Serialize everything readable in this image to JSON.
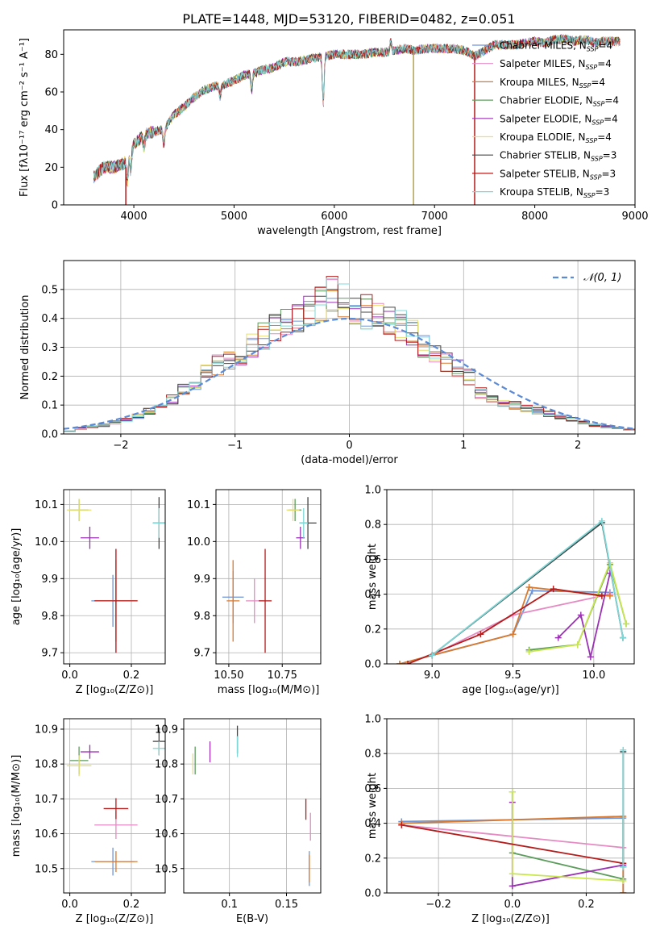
{
  "title": "PLATE=1448, MJD=53120, FIBERID=0482, z=0.051",
  "colors": {
    "chabrier_miles": "#6f95d6",
    "salpeter_miles": "#e58ac2",
    "kroupa_miles": "#d97a2f",
    "chabrier_elodie": "#5c9c5c",
    "salpeter_elodie": "#9b32b4",
    "kroupa_elodie": "#e8e070",
    "chabrier_stelib": "#444444",
    "salpeter_stelib": "#b51c1c",
    "kroupa_stelib": "#7fd8d8",
    "normal_curve": "#5b8bd6",
    "kroupa_elodie_mw": "#c8e650"
  },
  "chart_data": [
    {
      "id": "spectrum",
      "type": "line",
      "xlabel": "wavelength [Angstrom, rest frame]",
      "ylabel": "Flux [fλ10⁻¹⁷ erg cm⁻² s⁻¹ A⁻¹]",
      "xlim": [
        3300,
        9000
      ],
      "ylim": [
        0,
        93
      ],
      "xticks": [
        4000,
        5000,
        6000,
        7000,
        8000,
        9000
      ],
      "yticks": [
        0,
        20,
        40,
        60,
        80
      ],
      "grid": false,
      "legend_position": "right",
      "series": [
        {
          "name": "Chabrier MILES, N",
          "sub": "SSP",
          "suffix": "=4",
          "color_key": "chabrier_miles"
        },
        {
          "name": "Salpeter MILES, N",
          "sub": "SSP",
          "suffix": "=4",
          "color_key": "salpeter_miles"
        },
        {
          "name": "Kroupa MILES, N",
          "sub": "SSP",
          "suffix": "=4",
          "color_key": "kroupa_miles"
        },
        {
          "name": "Chabrier ELODIE, N",
          "sub": "SSP",
          "suffix": "=4",
          "color_key": "chabrier_elodie"
        },
        {
          "name": "Salpeter ELODIE, N",
          "sub": "SSP",
          "suffix": "=4",
          "color_key": "salpeter_elodie"
        },
        {
          "name": "Kroupa ELODIE, N",
          "sub": "SSP",
          "suffix": "=4",
          "color_key": "kroupa_elodie"
        },
        {
          "name": "Chabrier STELIB, N",
          "sub": "SSP",
          "suffix": "=3",
          "color_key": "chabrier_stelib"
        },
        {
          "name": "Salpeter STELIB, N",
          "sub": "SSP",
          "suffix": "=3",
          "color_key": "salpeter_stelib"
        },
        {
          "name": "Kroupa STELIB, N",
          "sub": "SSP",
          "suffix": "=3",
          "color_key": "kroupa_stelib"
        }
      ],
      "continuum": [
        [
          3600,
          15
        ],
        [
          3700,
          20
        ],
        [
          3800,
          20
        ],
        [
          3900,
          22
        ],
        [
          3950,
          26
        ],
        [
          4000,
          32
        ],
        [
          4100,
          37
        ],
        [
          4200,
          39
        ],
        [
          4300,
          40
        ],
        [
          4400,
          48
        ],
        [
          4500,
          52
        ],
        [
          4600,
          57
        ],
        [
          4700,
          61
        ],
        [
          4800,
          63
        ],
        [
          4900,
          64
        ],
        [
          5000,
          66
        ],
        [
          5100,
          69
        ],
        [
          5200,
          70
        ],
        [
          5300,
          72
        ],
        [
          5400,
          73
        ],
        [
          5500,
          76
        ],
        [
          5600,
          76
        ],
        [
          5700,
          77
        ],
        [
          5800,
          78
        ],
        [
          5900,
          79
        ],
        [
          6000,
          80
        ],
        [
          6100,
          80
        ],
        [
          6200,
          80
        ],
        [
          6300,
          80
        ],
        [
          6400,
          81
        ],
        [
          6500,
          81
        ],
        [
          6600,
          82
        ],
        [
          6700,
          83
        ],
        [
          6800,
          82
        ],
        [
          6900,
          83
        ],
        [
          7000,
          83
        ],
        [
          7100,
          83
        ],
        [
          7200,
          83
        ],
        [
          7300,
          82
        ],
        [
          7400,
          79
        ],
        [
          7500,
          82
        ],
        [
          7600,
          85
        ],
        [
          7700,
          85
        ],
        [
          7800,
          85
        ],
        [
          7900,
          86
        ],
        [
          8000,
          87
        ],
        [
          8100,
          86
        ],
        [
          8200,
          88
        ],
        [
          8300,
          88
        ],
        [
          8400,
          87
        ],
        [
          8500,
          88
        ],
        [
          8600,
          86
        ],
        [
          8700,
          87
        ],
        [
          8800,
          87
        ],
        [
          8850,
          87
        ]
      ],
      "absorption": [
        [
          3934,
          12
        ],
        [
          3969,
          10
        ],
        [
          4101,
          6
        ],
        [
          4300,
          8
        ],
        [
          4861,
          6
        ],
        [
          5175,
          9
        ],
        [
          5890,
          25
        ],
        [
          6563,
          -5
        ]
      ],
      "dropouts": [
        [
          3920,
          20
        ],
        [
          6790,
          82
        ],
        [
          7400,
          80
        ]
      ]
    },
    {
      "id": "residuals",
      "type": "histogram",
      "xlabel": "(data-model)/error",
      "ylabel": "Normed distribution",
      "xlim": [
        -2.5,
        2.5
      ],
      "ylim": [
        0,
        0.6
      ],
      "xticks": [
        -2,
        -1,
        0,
        1,
        2
      ],
      "yticks": [
        0.0,
        0.1,
        0.2,
        0.3,
        0.4,
        0.5
      ],
      "grid": true,
      "legend": "𝒩(0, 1)",
      "legend_position": "top-right",
      "bin_edges": [
        -2.5,
        -2.4,
        -2.3,
        -2.2,
        -2.1,
        -2.0,
        -1.9,
        -1.8,
        -1.7,
        -1.6,
        -1.5,
        -1.4,
        -1.3,
        -1.2,
        -1.1,
        -1.0,
        -0.9,
        -0.8,
        -0.7,
        -0.6,
        -0.5,
        -0.4,
        -0.3,
        -0.2,
        -0.1,
        0.0,
        0.1,
        0.2,
        0.3,
        0.4,
        0.5,
        0.6,
        0.7,
        0.8,
        0.9,
        1.0,
        1.1,
        1.2,
        1.3,
        1.4,
        1.5,
        1.6,
        1.7,
        1.8,
        1.9,
        2.0,
        2.1,
        2.2,
        2.3,
        2.4,
        2.5
      ],
      "base_density": [
        0.01,
        0.02,
        0.025,
        0.03,
        0.04,
        0.05,
        0.06,
        0.08,
        0.1,
        0.12,
        0.15,
        0.18,
        0.21,
        0.24,
        0.26,
        0.28,
        0.31,
        0.34,
        0.37,
        0.39,
        0.41,
        0.42,
        0.45,
        0.5,
        0.46,
        0.43,
        0.42,
        0.41,
        0.4,
        0.38,
        0.36,
        0.3,
        0.28,
        0.25,
        0.23,
        0.2,
        0.14,
        0.12,
        0.11,
        0.1,
        0.09,
        0.08,
        0.07,
        0.06,
        0.05,
        0.04,
        0.03,
        0.025,
        0.02,
        0.015
      ],
      "series_keys": [
        "chabrier_miles",
        "salpeter_miles",
        "kroupa_miles",
        "chabrier_elodie",
        "salpeter_elodie",
        "kroupa_elodie",
        "chabrier_stelib",
        "salpeter_stelib",
        "kroupa_stelib"
      ]
    },
    {
      "id": "age_vs_z",
      "type": "scatter",
      "xlabel": "Z [log₁₀(Z/Z⊙)]",
      "ylabel": "age  [log₁₀(age/yr)]",
      "xlim": [
        -0.02,
        0.31
      ],
      "ylim": [
        9.67,
        10.14
      ],
      "xticks": [
        0.0,
        0.2
      ],
      "yticks": [
        9.7,
        9.8,
        9.9,
        10.0,
        10.1
      ],
      "grid": true,
      "points": [
        {
          "key": "chabrier_miles",
          "x": 0.14,
          "xerr": 0.07,
          "y": 9.84,
          "yerr": 0.07
        },
        {
          "key": "salpeter_miles",
          "x": 0.15,
          "xerr": 0.07,
          "y": 9.84,
          "yerr": 0.14
        },
        {
          "key": "kroupa_miles",
          "x": 0.15,
          "xerr": 0.07,
          "y": 9.84,
          "yerr": 0.11
        },
        {
          "key": "chabrier_elodie",
          "x": 0.03,
          "xerr": 0.03,
          "y": 10.085,
          "yerr": 0.03
        },
        {
          "key": "salpeter_elodie",
          "x": 0.065,
          "xerr": 0.03,
          "y": 10.01,
          "yerr": 0.03
        },
        {
          "key": "kroupa_elodie",
          "x": 0.03,
          "xerr": 0.04,
          "y": 10.085,
          "yerr": 0.03
        },
        {
          "key": "chabrier_stelib",
          "x": 0.29,
          "xerr": 0.02,
          "y": 10.05,
          "yerr": 0.07
        },
        {
          "key": "salpeter_stelib",
          "x": 0.15,
          "xerr": 0.07,
          "y": 9.84,
          "yerr": 0.14
        },
        {
          "key": "kroupa_stelib",
          "x": 0.29,
          "xerr": 0.02,
          "y": 10.05,
          "yerr": 0.04
        }
      ]
    },
    {
      "id": "age_vs_mass",
      "type": "scatter",
      "xlabel": "mass [log₁₀(M/M⊙)]",
      "ylabel": "",
      "xlim": [
        10.44,
        10.93
      ],
      "ylim": [
        9.67,
        10.14
      ],
      "xticks": [
        10.5,
        10.75
      ],
      "yticks": [
        9.7,
        9.8,
        9.9,
        10.0,
        10.1
      ],
      "grid": true,
      "points": [
        {
          "key": "chabrier_miles",
          "x": 10.52,
          "xerr": 0.05,
          "y": 9.85,
          "yerr": 0.07
        },
        {
          "key": "salpeter_miles",
          "x": 10.62,
          "xerr": 0.04,
          "y": 9.84,
          "yerr": 0.06
        },
        {
          "key": "kroupa_miles",
          "x": 10.52,
          "xerr": 0.03,
          "y": 9.84,
          "yerr": 0.11
        },
        {
          "key": "chabrier_elodie",
          "x": 10.81,
          "xerr": 0.03,
          "y": 10.085,
          "yerr": 0.03
        },
        {
          "key": "salpeter_elodie",
          "x": 10.835,
          "xerr": 0.02,
          "y": 10.01,
          "yerr": 0.03
        },
        {
          "key": "kroupa_elodie",
          "x": 10.8,
          "xerr": 0.03,
          "y": 10.085,
          "yerr": 0.03
        },
        {
          "key": "chabrier_stelib",
          "x": 10.87,
          "xerr": 0.04,
          "y": 10.05,
          "yerr": 0.07
        },
        {
          "key": "salpeter_stelib",
          "x": 10.67,
          "xerr": 0.03,
          "y": 9.84,
          "yerr": 0.14
        },
        {
          "key": "kroupa_stelib",
          "x": 10.85,
          "xerr": 0.02,
          "y": 10.05,
          "yerr": 0.04
        }
      ]
    },
    {
      "id": "mass_weight_vs_age",
      "type": "line",
      "xlabel": "age  [log₁₀(age/yr)]",
      "ylabel": "mass weight",
      "xlim": [
        8.72,
        10.25
      ],
      "ylim": [
        0,
        1.0
      ],
      "xticks": [
        9.0,
        9.5,
        10.0
      ],
      "yticks": [
        0.0,
        0.2,
        0.4,
        0.6,
        0.8,
        1.0
      ],
      "grid": true,
      "series": [
        {
          "key": "chabrier_miles",
          "x": [
            8.8,
            9.5,
            9.62,
            10.1
          ],
          "y": [
            0.0,
            0.17,
            0.42,
            0.41
          ]
        },
        {
          "key": "salpeter_miles",
          "x": [
            9.0,
            9.5,
            10.1
          ],
          "y": [
            0.05,
            0.28,
            0.4
          ]
        },
        {
          "key": "kroupa_miles",
          "x": [
            8.8,
            9.0,
            9.5,
            9.6,
            10.1
          ],
          "y": [
            0.0,
            0.05,
            0.17,
            0.44,
            0.39
          ]
        },
        {
          "key": "chabrier_elodie",
          "x": [
            9.6,
            9.9,
            10.1,
            10.2
          ],
          "y": [
            0.08,
            0.11,
            0.57,
            0.23
          ]
        },
        {
          "key": "salpeter_elodie",
          "x": [
            9.78,
            9.92,
            9.98,
            10.1
          ],
          "y": [
            0.15,
            0.28,
            0.04,
            0.52
          ]
        },
        {
          "key": "kroupa_elodie",
          "x": [
            9.6,
            9.9,
            10.1,
            10.2
          ],
          "y": [
            0.07,
            0.11,
            0.58,
            0.23
          ]
        },
        {
          "key": "chabrier_stelib",
          "x": [
            9.0,
            10.05,
            10.18
          ],
          "y": [
            0.05,
            0.81,
            0.15
          ]
        },
        {
          "key": "salpeter_stelib",
          "x": [
            8.85,
            9.3,
            9.75,
            10.05
          ],
          "y": [
            0.0,
            0.17,
            0.43,
            0.39
          ]
        },
        {
          "key": "kroupa_stelib",
          "x": [
            9.0,
            10.05,
            10.18
          ],
          "y": [
            0.05,
            0.82,
            0.15
          ]
        }
      ]
    },
    {
      "id": "mass_vs_z",
      "type": "scatter",
      "xlabel": "Z [log₁₀(Z/Z⊙)]",
      "ylabel": "mass [log₁₀(M/M⊙)]",
      "xlim": [
        -0.02,
        0.31
      ],
      "ylim": [
        10.43,
        10.93
      ],
      "xticks": [
        0.0,
        0.2
      ],
      "yticks": [
        10.5,
        10.6,
        10.7,
        10.8,
        10.9
      ],
      "grid": true,
      "points": [
        {
          "key": "chabrier_miles",
          "x": 0.14,
          "xerr": 0.07,
          "y": 10.52,
          "yerr": 0.04
        },
        {
          "key": "salpeter_miles",
          "x": 0.15,
          "xerr": 0.07,
          "y": 10.625,
          "yerr": 0.04
        },
        {
          "key": "kroupa_miles",
          "x": 0.15,
          "xerr": 0.07,
          "y": 10.52,
          "yerr": 0.03
        },
        {
          "key": "chabrier_elodie",
          "x": 0.03,
          "xerr": 0.03,
          "y": 10.81,
          "yerr": 0.04
        },
        {
          "key": "salpeter_elodie",
          "x": 0.065,
          "xerr": 0.03,
          "y": 10.835,
          "yerr": 0.02
        },
        {
          "key": "kroupa_elodie",
          "x": 0.03,
          "xerr": 0.04,
          "y": 10.795,
          "yerr": 0.03
        },
        {
          "key": "chabrier_stelib",
          "x": 0.29,
          "xerr": 0.02,
          "y": 10.865,
          "yerr": 0.04
        },
        {
          "key": "salpeter_stelib",
          "x": 0.15,
          "xerr": 0.04,
          "y": 10.672,
          "yerr": 0.03
        },
        {
          "key": "kroupa_stelib",
          "x": 0.29,
          "xerr": 0.02,
          "y": 10.845,
          "yerr": 0.02
        }
      ]
    },
    {
      "id": "mass_vs_ebv",
      "type": "scatter",
      "xlabel": "E(B-V)",
      "ylabel": "",
      "xlim": [
        0.06,
        0.18
      ],
      "ylim": [
        10.43,
        10.93
      ],
      "xticks": [
        0.1,
        0.15
      ],
      "yticks": [
        10.5,
        10.6,
        10.7,
        10.8,
        10.9
      ],
      "grid": true,
      "points": [
        {
          "key": "chabrier_miles",
          "x": 0.17,
          "xerr": 0.0,
          "y": 10.5,
          "yerr": 0.05
        },
        {
          "key": "salpeter_miles",
          "x": 0.171,
          "xerr": 0.0,
          "y": 10.62,
          "yerr": 0.04
        },
        {
          "key": "kroupa_miles",
          "x": 0.17,
          "xerr": 0.0,
          "y": 10.5,
          "yerr": 0.04
        },
        {
          "key": "chabrier_elodie",
          "x": 0.07,
          "xerr": 0.0,
          "y": 10.81,
          "yerr": 0.04
        },
        {
          "key": "salpeter_elodie",
          "x": 0.083,
          "xerr": 0.0,
          "y": 10.835,
          "yerr": 0.03
        },
        {
          "key": "kroupa_elodie",
          "x": 0.068,
          "xerr": 0.0,
          "y": 10.8,
          "yerr": 0.03
        },
        {
          "key": "chabrier_stelib",
          "x": 0.107,
          "xerr": 0.0,
          "y": 10.87,
          "yerr": 0.04
        },
        {
          "key": "salpeter_stelib",
          "x": 0.167,
          "xerr": 0.0,
          "y": 10.67,
          "yerr": 0.03
        },
        {
          "key": "kroupa_stelib",
          "x": 0.107,
          "xerr": 0.0,
          "y": 10.85,
          "yerr": 0.03
        }
      ]
    },
    {
      "id": "mass_weight_vs_z",
      "type": "line",
      "xlabel": "Z [log₁₀(Z/Z⊙)]",
      "ylabel": "mass weight",
      "xlim": [
        -0.34,
        0.33
      ],
      "ylim": [
        0,
        1.0
      ],
      "xticks": [
        -0.2,
        0.0,
        0.2
      ],
      "yticks": [
        0.0,
        0.2,
        0.4,
        0.6,
        0.8,
        1.0
      ],
      "grid": true,
      "series": [
        {
          "key": "chabrier_miles",
          "x": [
            -0.3,
            0.3,
            0.3
          ],
          "y": [
            0.41,
            0.43,
            0.0
          ]
        },
        {
          "key": "salpeter_miles",
          "x": [
            -0.3,
            0.3
          ],
          "y": [
            0.39,
            0.26
          ]
        },
        {
          "key": "kroupa_miles",
          "x": [
            -0.3,
            0.3,
            0.3
          ],
          "y": [
            0.4,
            0.44,
            0.0
          ]
        },
        {
          "key": "chabrier_elodie",
          "x": [
            0.0,
            0.0,
            0.3
          ],
          "y": [
            0.58,
            0.23,
            0.08
          ]
        },
        {
          "key": "salpeter_elodie",
          "x": [
            0.0,
            0.0,
            0.3
          ],
          "y": [
            0.52,
            0.04,
            0.16
          ]
        },
        {
          "key": "kroupa_elodie",
          "x": [
            0.0,
            0.0,
            0.3
          ],
          "y": [
            0.58,
            0.11,
            0.07
          ]
        },
        {
          "key": "chabrier_stelib",
          "x": [
            0.3,
            0.3
          ],
          "y": [
            0.81,
            0.15
          ]
        },
        {
          "key": "salpeter_stelib",
          "x": [
            -0.3,
            0.3
          ],
          "y": [
            0.39,
            0.17
          ]
        },
        {
          "key": "kroupa_stelib",
          "x": [
            0.3,
            0.3
          ],
          "y": [
            0.82,
            0.15
          ]
        }
      ]
    }
  ]
}
